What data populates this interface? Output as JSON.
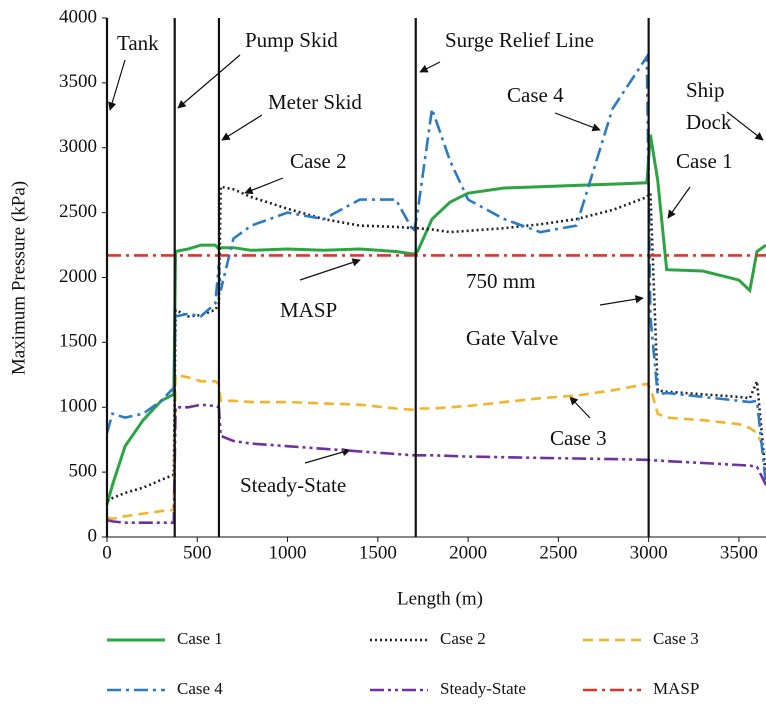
{
  "chart_data": {
    "type": "line",
    "x_label": "Length (m)",
    "y_label": "Maximum Pressure (kPa)",
    "xlim": [
      0,
      3650
    ],
    "ylim": [
      0,
      4000
    ],
    "xticks": [
      0,
      500,
      1000,
      1500,
      2000,
      2500,
      3000,
      3500
    ],
    "yticks": [
      0,
      500,
      1000,
      1500,
      2000,
      2500,
      3000,
      3500,
      4000
    ],
    "vlines": [
      0,
      375,
      620,
      1710,
      3000
    ],
    "annotations": [
      "Tank",
      "Pump Skid",
      "Meter Skid",
      "Case 2",
      "Surge Relief Line",
      "Case 4",
      "Ship",
      "Dock",
      "Case 1",
      "MASP",
      "750 mm",
      "Gate Valve",
      "Case 3",
      "Steady-State"
    ],
    "series": [
      {
        "name": "Case 1",
        "color": "#2ca444",
        "style": "solid",
        "x": [
          0,
          30,
          100,
          200,
          300,
          370,
          380,
          450,
          520,
          600,
          620,
          630,
          700,
          800,
          1000,
          1200,
          1400,
          1600,
          1700,
          1720,
          1800,
          1900,
          2000,
          2200,
          2400,
          2600,
          2800,
          2990,
          3010,
          3050,
          3100,
          3300,
          3500,
          3560,
          3600,
          3650
        ],
        "values": [
          250,
          400,
          700,
          900,
          1050,
          1100,
          2200,
          2220,
          2250,
          2250,
          2220,
          2230,
          2230,
          2210,
          2220,
          2210,
          2220,
          2200,
          2180,
          2200,
          2450,
          2580,
          2650,
          2690,
          2700,
          2710,
          2720,
          2730,
          3100,
          2750,
          2060,
          2050,
          1980,
          1900,
          2200,
          2250
        ]
      },
      {
        "name": "Case 2",
        "color": "#222222",
        "style": "dotted",
        "x": [
          0,
          30,
          100,
          200,
          300,
          370,
          380,
          450,
          520,
          600,
          620,
          630,
          700,
          800,
          1000,
          1200,
          1400,
          1600,
          1700,
          1720,
          1800,
          1900,
          2000,
          2200,
          2400,
          2600,
          2800,
          2990,
          3010,
          3050,
          3100,
          3300,
          3500,
          3560,
          3600,
          3650
        ],
        "values": [
          280,
          300,
          340,
          380,
          440,
          480,
          1750,
          1700,
          1710,
          1750,
          1800,
          2700,
          2680,
          2620,
          2530,
          2450,
          2400,
          2390,
          2380,
          2380,
          2370,
          2350,
          2360,
          2380,
          2410,
          2450,
          2520,
          2620,
          2650,
          1130,
          1120,
          1100,
          1080,
          1070,
          1200,
          450
        ]
      },
      {
        "name": "Case 3",
        "color": "#f2b52a",
        "style": "dashed",
        "x": [
          0,
          30,
          100,
          200,
          300,
          370,
          380,
          450,
          520,
          600,
          620,
          630,
          700,
          800,
          1000,
          1200,
          1400,
          1600,
          1700,
          1720,
          1800,
          1900,
          2000,
          2200,
          2400,
          2600,
          2800,
          2990,
          3010,
          3050,
          3100,
          3300,
          3500,
          3560,
          3600,
          3650
        ],
        "values": [
          150,
          140,
          160,
          180,
          200,
          210,
          1250,
          1230,
          1200,
          1200,
          1180,
          1050,
          1050,
          1040,
          1040,
          1030,
          1020,
          990,
          980,
          990,
          990,
          1000,
          1010,
          1040,
          1070,
          1090,
          1130,
          1180,
          1150,
          950,
          920,
          900,
          870,
          840,
          800,
          650
        ]
      },
      {
        "name": "Case 4",
        "color": "#2a7bc4",
        "style": "dashdot",
        "x": [
          0,
          30,
          100,
          200,
          300,
          370,
          380,
          450,
          520,
          600,
          620,
          630,
          700,
          800,
          1000,
          1200,
          1400,
          1600,
          1700,
          1720,
          1800,
          1900,
          2000,
          2200,
          2400,
          2600,
          2800,
          2990,
          3010,
          3050,
          3100,
          3300,
          3500,
          3560,
          3600,
          3650
        ],
        "values": [
          800,
          950,
          920,
          950,
          1050,
          1150,
          1700,
          1720,
          1700,
          1800,
          2100,
          1900,
          2300,
          2400,
          2500,
          2450,
          2600,
          2600,
          2350,
          2500,
          3300,
          2900,
          2600,
          2450,
          2350,
          2400,
          3300,
          3700,
          1700,
          1100,
          1110,
          1080,
          1050,
          1040,
          1050,
          400
        ]
      },
      {
        "name": "Steady-State",
        "color": "#7030a0",
        "style": "dashdotdot",
        "x": [
          0,
          30,
          100,
          200,
          300,
          370,
          380,
          450,
          520,
          600,
          620,
          630,
          700,
          800,
          1000,
          1200,
          1400,
          1600,
          1700,
          1720,
          1800,
          1900,
          2000,
          2200,
          2400,
          2600,
          2800,
          2990,
          3010,
          3050,
          3100,
          3300,
          3500,
          3560,
          3600,
          3650
        ],
        "values": [
          130,
          120,
          110,
          110,
          110,
          110,
          1000,
          1000,
          1020,
          1010,
          1000,
          780,
          740,
          720,
          700,
          680,
          660,
          640,
          630,
          630,
          630,
          625,
          620,
          615,
          610,
          605,
          600,
          595,
          590,
          590,
          585,
          570,
          555,
          550,
          540,
          400
        ]
      },
      {
        "name": "MASP",
        "color": "#e8302a",
        "style": "dashdot",
        "x": [
          0,
          3650
        ],
        "values": [
          2170,
          2170
        ]
      }
    ]
  }
}
